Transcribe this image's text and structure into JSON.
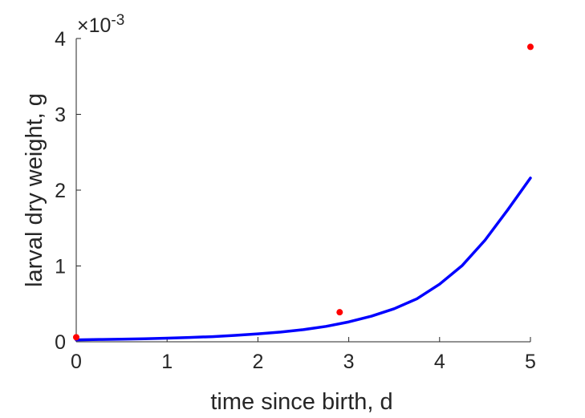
{
  "chart_data": {
    "type": "line",
    "xlabel": "time since birth, d",
    "ylabel": "larval dry weight, g",
    "xlim": [
      0,
      5
    ],
    "ylim": [
      0,
      0.004
    ],
    "y_exponent_label": {
      "base": "×10",
      "exponent": "-3"
    },
    "x_ticks": [
      {
        "value": 0,
        "label": "0"
      },
      {
        "value": 1,
        "label": "1"
      },
      {
        "value": 2,
        "label": "2"
      },
      {
        "value": 3,
        "label": "3"
      },
      {
        "value": 4,
        "label": "4"
      },
      {
        "value": 5,
        "label": "5"
      }
    ],
    "y_ticks": [
      {
        "value": 0,
        "label": "0"
      },
      {
        "value": 0.001,
        "label": "1"
      },
      {
        "value": 0.002,
        "label": "2"
      },
      {
        "value": 0.003,
        "label": "3"
      },
      {
        "value": 0.004,
        "label": "4"
      }
    ],
    "grid": false,
    "series": [
      {
        "kind": "line",
        "color": "#0000ff",
        "x": [
          0,
          0.25,
          0.5,
          0.75,
          1,
          1.25,
          1.5,
          1.75,
          2,
          2.25,
          2.5,
          2.75,
          3,
          3.25,
          3.5,
          3.75,
          4,
          4.25,
          4.5,
          4.75,
          5
        ],
        "y": [
          2.5e-05,
          3e-05,
          3.5e-05,
          4e-05,
          4.7e-05,
          5.7e-05,
          6.8e-05,
          8.4e-05,
          0.000104,
          0.000128,
          0.00016,
          0.000203,
          0.000262,
          0.000338,
          0.000436,
          0.000567,
          0.00076,
          0.001007,
          0.00134,
          0.00174,
          0.00216
        ]
      },
      {
        "kind": "scatter",
        "color": "#ff0000",
        "x": [
          0,
          2.9,
          5
        ],
        "y": [
          6e-05,
          0.00039,
          0.00389
        ]
      }
    ]
  }
}
